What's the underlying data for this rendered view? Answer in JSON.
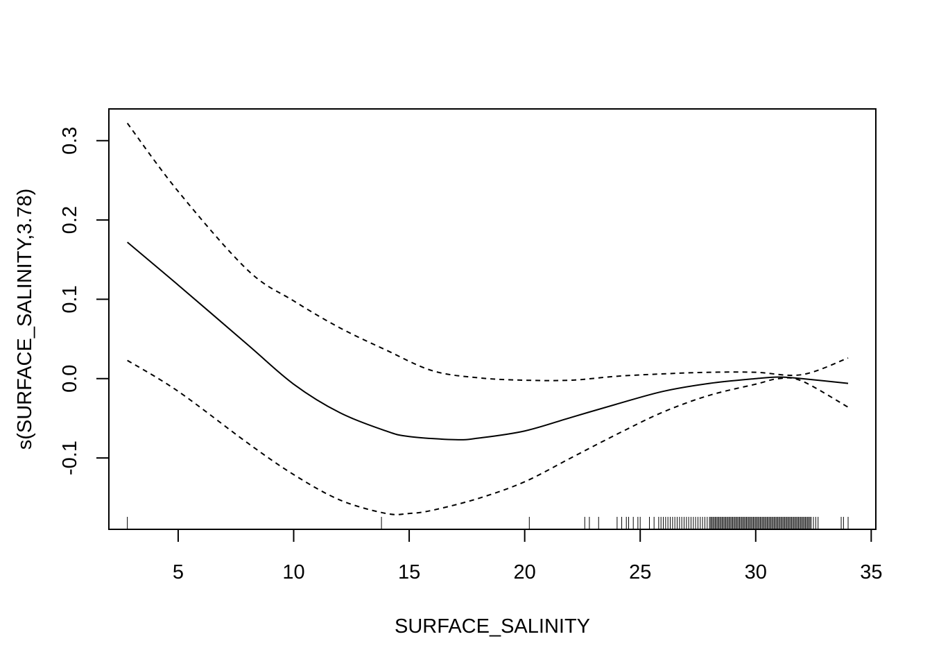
{
  "chart_data": {
    "type": "line",
    "title": "",
    "xlabel": "SURFACE_SALINITY",
    "ylabel": "s(SURFACE_SALINITY,3.78)",
    "xlim": [
      2,
      35.2
    ],
    "ylim": [
      -0.19,
      0.34
    ],
    "x_ticks": [
      5,
      10,
      15,
      20,
      25,
      30,
      35
    ],
    "x_tick_labels": [
      "5",
      "10",
      "15",
      "20",
      "25",
      "30",
      "35"
    ],
    "y_ticks": [
      -0.1,
      0.0,
      0.1,
      0.2,
      0.3
    ],
    "y_tick_labels": [
      "-0.1",
      "0.0",
      "0.1",
      "0.2",
      "0.3"
    ],
    "grid": false,
    "legend": "none",
    "series": [
      {
        "style": "solid",
        "x": [
          2.8,
          5,
          8,
          10,
          12,
          14,
          15,
          17,
          18,
          20,
          22,
          24,
          26,
          28,
          30,
          31,
          32,
          34
        ],
        "values": [
          0.172,
          0.118,
          0.043,
          -0.007,
          -0.043,
          -0.066,
          -0.073,
          -0.077,
          -0.075,
          -0.066,
          -0.049,
          -0.032,
          -0.016,
          -0.006,
          0.0,
          0.002,
          0.0,
          -0.006
        ]
      },
      {
        "style": "dashed",
        "x": [
          2.8,
          5,
          8,
          10,
          12,
          14,
          16,
          18,
          20,
          22,
          24,
          26,
          28,
          30,
          32,
          34
        ],
        "values": [
          0.322,
          0.236,
          0.137,
          0.098,
          0.064,
          0.036,
          0.01,
          0.001,
          -0.002,
          -0.002,
          0.003,
          0.006,
          0.008,
          0.008,
          0.005,
          0.026
        ]
      },
      {
        "style": "dashed",
        "x": [
          2.8,
          5,
          8,
          10,
          12,
          14,
          15,
          16,
          18,
          20,
          22,
          24,
          26,
          28,
          30,
          31,
          32,
          34
        ],
        "values": [
          0.023,
          -0.016,
          -0.081,
          -0.121,
          -0.153,
          -0.17,
          -0.17,
          -0.166,
          -0.151,
          -0.13,
          -0.1,
          -0.07,
          -0.042,
          -0.021,
          -0.007,
          0.0,
          -0.003,
          -0.036
        ]
      }
    ],
    "rug_x": [
      2.8,
      13.8,
      20.2,
      22.6,
      22.8,
      23.2,
      24.0,
      24.2,
      24.4,
      24.5,
      24.7,
      24.9,
      25.0,
      25.4,
      25.6,
      25.8,
      25.9,
      26.0,
      26.1,
      26.2,
      26.3,
      26.4,
      26.5,
      26.6,
      26.7,
      26.8,
      26.9,
      27.0,
      27.1,
      27.2,
      27.3,
      27.4,
      27.5,
      27.6,
      27.7,
      27.8,
      27.9,
      28.0,
      28.05,
      28.1,
      28.15,
      28.2,
      28.25,
      28.3,
      28.35,
      28.4,
      28.45,
      28.5,
      28.55,
      28.6,
      28.65,
      28.7,
      28.75,
      28.8,
      28.85,
      28.9,
      28.95,
      29.0,
      29.05,
      29.1,
      29.15,
      29.2,
      29.25,
      29.3,
      29.35,
      29.4,
      29.45,
      29.5,
      29.55,
      29.6,
      29.65,
      29.7,
      29.75,
      29.8,
      29.85,
      29.9,
      29.95,
      30.0,
      30.05,
      30.1,
      30.15,
      30.2,
      30.25,
      30.3,
      30.35,
      30.4,
      30.45,
      30.5,
      30.55,
      30.6,
      30.65,
      30.7,
      30.75,
      30.8,
      30.85,
      30.9,
      30.95,
      31.0,
      31.05,
      31.1,
      31.15,
      31.2,
      31.25,
      31.3,
      31.35,
      31.4,
      31.45,
      31.5,
      31.55,
      31.6,
      31.65,
      31.7,
      31.75,
      31.8,
      31.85,
      31.9,
      31.95,
      32.0,
      32.05,
      32.1,
      32.15,
      32.2,
      32.25,
      32.3,
      32.35,
      32.4,
      32.5,
      32.6,
      32.7,
      33.7,
      33.8,
      34.0
    ]
  }
}
